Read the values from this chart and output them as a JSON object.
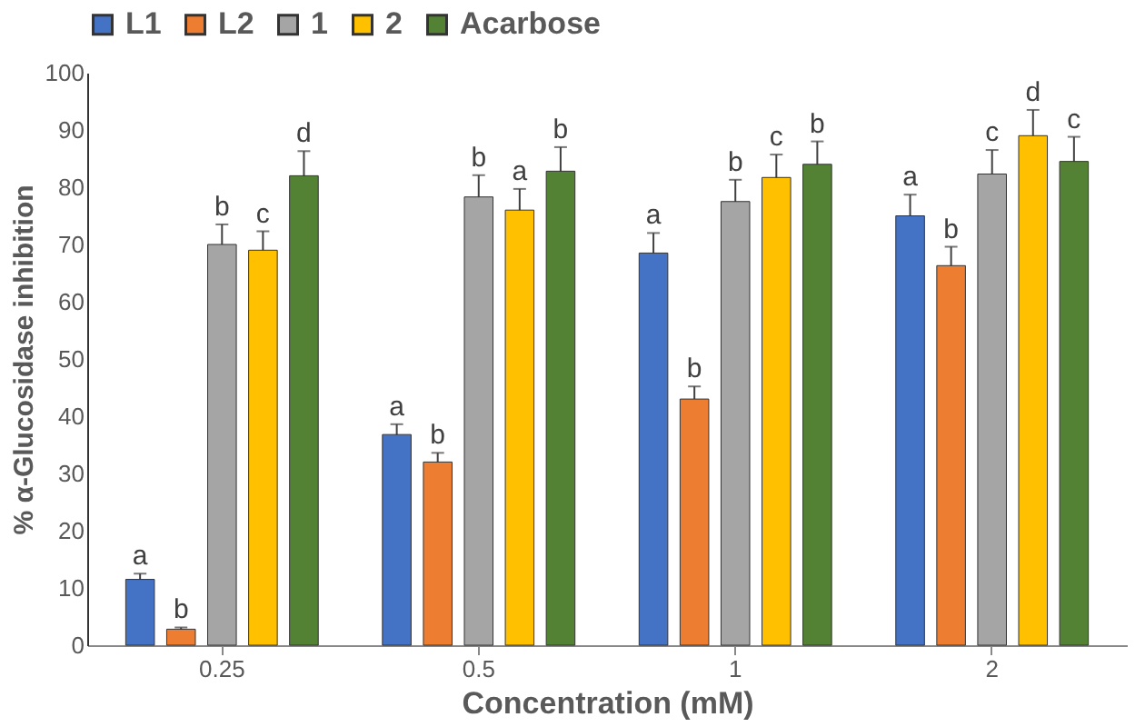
{
  "chart_data": {
    "type": "bar",
    "xlabel": "Concentration (mM)",
    "ylabel": "% α-Glucosidase inhibition",
    "categories": [
      "0.25",
      "0.5",
      "1",
      "2"
    ],
    "ylim": [
      0,
      100
    ],
    "yticks": [
      0,
      10,
      20,
      30,
      40,
      50,
      60,
      70,
      80,
      90,
      100
    ],
    "grid": false,
    "legend": "top",
    "series": [
      {
        "name": "L1",
        "color": "#4472c4",
        "values": [
          11.5,
          36.8,
          68.5,
          75
        ],
        "errors": [
          1,
          1.8,
          3.5,
          3.7
        ],
        "value_labels": [
          "a",
          "a",
          "a",
          "a"
        ]
      },
      {
        "name": "L2",
        "color": "#ed7d31",
        "values": [
          2.8,
          32,
          43,
          66.3
        ],
        "errors": [
          0.3,
          1.6,
          2.2,
          3.3
        ],
        "value_labels": [
          "b",
          "b",
          "b",
          "b"
        ]
      },
      {
        "name": "1",
        "color": "#a5a5a5",
        "values": [
          70,
          78.3,
          77.5,
          82.3
        ],
        "errors": [
          3.5,
          3.8,
          3.8,
          4.2
        ],
        "value_labels": [
          "b",
          "b",
          "b",
          "c"
        ]
      },
      {
        "name": "2",
        "color": "#ffc000",
        "values": [
          69,
          76,
          81.7,
          89
        ],
        "errors": [
          3.3,
          3.7,
          4,
          4.5
        ],
        "value_labels": [
          "c",
          "a",
          "c",
          "d"
        ]
      },
      {
        "name": "Acarbose",
        "color": "#548235",
        "values": [
          82,
          82.8,
          84,
          84.5
        ],
        "errors": [
          4.3,
          4.2,
          4,
          4.3
        ],
        "value_labels": [
          "d",
          "b",
          "b",
          "c"
        ]
      }
    ]
  }
}
